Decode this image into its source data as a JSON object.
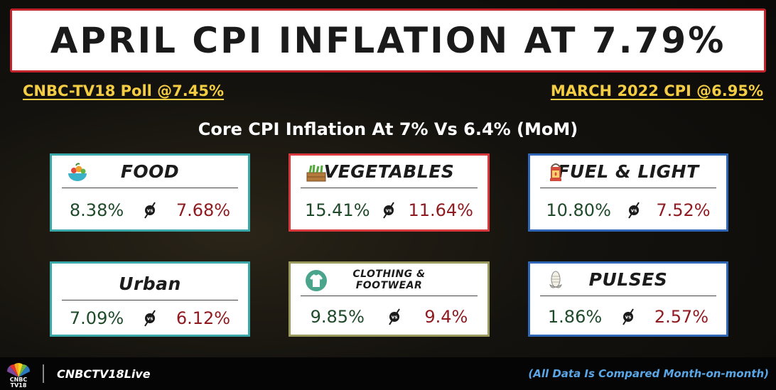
{
  "headline": "APRIL CPI INFLATION AT 7.79%",
  "poll": "CNBC-TV18 Poll @7.45%",
  "previous": "MARCH 2022 CPI @6.95%",
  "core": "Core CPI Inflation  At 7% Vs 6.4% (MoM)",
  "cards": [
    {
      "title": "FOOD",
      "current": "8.38%",
      "previous": "7.68%",
      "icon": "food-bowl-icon"
    },
    {
      "title": "VEGETABLES",
      "current": "15.41%",
      "previous": "11.64%",
      "icon": "vegetable-crate-icon"
    },
    {
      "title": "FUEL & LIGHT",
      "current": "10.80%",
      "previous": "7.52%",
      "icon": "lantern-icon"
    },
    {
      "title": "Urban",
      "current": "7.09%",
      "previous": "6.12%",
      "icon": ""
    },
    {
      "title_line1": "CLOTHING &",
      "title_line2": "FOOTWEAR",
      "current": "9.85%",
      "previous": "9.4%",
      "icon": "tshirt-icon"
    },
    {
      "title": "PULSES",
      "current": "1.86%",
      "previous": "2.57%",
      "icon": "corn-icon"
    }
  ],
  "vs_label": "vs",
  "footer": {
    "logo_text_line1": "CNBC",
    "logo_text_line2": "TV18",
    "handle": "CNBCTV18Live",
    "note": "(All Data Is Compared Month-on-month)"
  },
  "colors": {
    "title_border": "#c3242b",
    "highlight": "#f4cd43",
    "current_value": "#1f4a2a",
    "previous_value": "#8f1a1f",
    "footnote": "#5aa6e6"
  }
}
